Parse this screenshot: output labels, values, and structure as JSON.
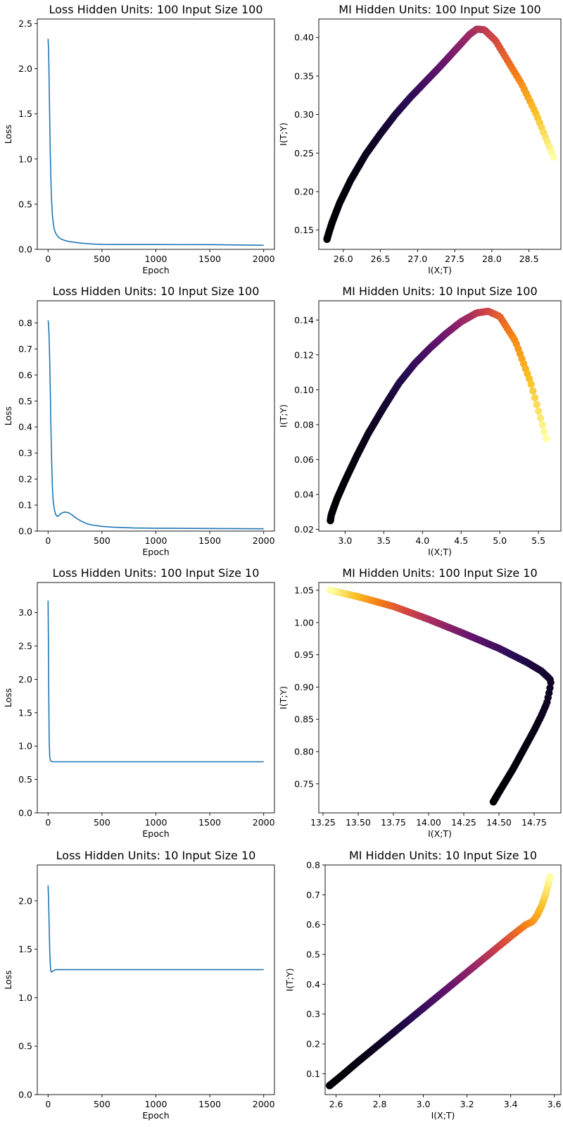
{
  "chart_data": [
    {
      "type": "line",
      "title": "Loss Hidden Units: 100 Input Size 100",
      "xlabel": "Epoch",
      "ylabel": "Loss",
      "xlim": [
        -100,
        2100
      ],
      "ylim": [
        0,
        2.55
      ],
      "xticks": [
        "0",
        "500",
        "1000",
        "1500",
        "2000"
      ],
      "yticks": [
        "0.0",
        "0.5",
        "1.0",
        "1.5",
        "2.0",
        "2.5"
      ],
      "series": [
        {
          "color": "#1f77b4",
          "x": [
            0,
            5,
            10,
            15,
            20,
            30,
            40,
            50,
            60,
            70,
            80,
            100,
            120,
            150,
            200,
            300,
            400,
            500,
            700,
            1000,
            1500,
            2000
          ],
          "y": [
            2.33,
            2.2,
            1.85,
            1.45,
            1.08,
            0.6,
            0.38,
            0.27,
            0.21,
            0.18,
            0.16,
            0.13,
            0.115,
            0.1,
            0.085,
            0.07,
            0.06,
            0.055,
            0.053,
            0.053,
            0.052,
            0.045
          ]
        }
      ]
    },
    {
      "type": "scatter",
      "title": "MI Hidden Units: 100 Input Size 100",
      "xlabel": "I(X;T)",
      "ylabel": "I(T;Y)",
      "xlim": [
        25.67,
        28.93
      ],
      "ylim": [
        0.125,
        0.424
      ],
      "xticks": [
        "26.0",
        "26.5",
        "27.0",
        "27.5",
        "28.0",
        "28.5"
      ],
      "yticks": [
        "0.15",
        "0.20",
        "0.25",
        "0.30",
        "0.35",
        "0.40"
      ],
      "colormap": "inferno",
      "curve_x": [
        25.78,
        25.8,
        25.85,
        25.95,
        26.1,
        26.3,
        26.5,
        26.7,
        26.9,
        27.1,
        27.3,
        27.5,
        27.7,
        27.8,
        27.9,
        28.05,
        28.2,
        28.4,
        28.6,
        28.83
      ],
      "curve_y": [
        0.138,
        0.145,
        0.16,
        0.185,
        0.215,
        0.248,
        0.275,
        0.3,
        0.322,
        0.342,
        0.362,
        0.383,
        0.404,
        0.411,
        0.41,
        0.396,
        0.372,
        0.34,
        0.3,
        0.245
      ]
    },
    {
      "type": "line",
      "title": "Loss Hidden Units: 10 Input Size 100",
      "xlabel": "Epoch",
      "ylabel": "Loss",
      "xlim": [
        -100,
        2100
      ],
      "ylim": [
        0,
        0.885
      ],
      "xticks": [
        "0",
        "500",
        "1000",
        "1500",
        "2000"
      ],
      "yticks": [
        "0.0",
        "0.1",
        "0.2",
        "0.3",
        "0.4",
        "0.5",
        "0.6",
        "0.7",
        "0.8"
      ],
      "series": [
        {
          "color": "#1f77b4",
          "x": [
            0,
            5,
            10,
            15,
            20,
            25,
            30,
            35,
            40,
            45,
            50,
            60,
            70,
            80,
            90,
            100,
            120,
            150,
            180,
            200,
            230,
            260,
            300,
            350,
            400,
            500,
            600,
            800,
            1000,
            1500,
            2000
          ],
          "y": [
            0.81,
            0.79,
            0.74,
            0.66,
            0.55,
            0.43,
            0.33,
            0.24,
            0.17,
            0.13,
            0.105,
            0.08,
            0.065,
            0.058,
            0.057,
            0.06,
            0.068,
            0.073,
            0.072,
            0.068,
            0.06,
            0.05,
            0.04,
            0.03,
            0.024,
            0.018,
            0.015,
            0.012,
            0.011,
            0.01,
            0.009
          ]
        }
      ]
    },
    {
      "type": "scatter",
      "title": "MI Hidden Units: 10 Input Size 100",
      "xlabel": "I(X;T)",
      "ylabel": "I(T;Y)",
      "xlim": [
        2.66,
        5.79
      ],
      "ylim": [
        0.019,
        0.151
      ],
      "xticks": [
        "3.0",
        "3.5",
        "4.0",
        "4.5",
        "5.0",
        "5.5"
      ],
      "yticks": [
        "0.02",
        "0.04",
        "0.06",
        "0.08",
        "0.10",
        "0.12",
        "0.14"
      ],
      "colormap": "inferno",
      "curve_x": [
        2.81,
        2.82,
        2.85,
        2.9,
        3.0,
        3.15,
        3.3,
        3.5,
        3.7,
        3.9,
        4.1,
        4.3,
        4.5,
        4.7,
        4.85,
        5.0,
        5.2,
        5.4,
        5.6
      ],
      "curve_y": [
        0.025,
        0.028,
        0.032,
        0.038,
        0.048,
        0.062,
        0.075,
        0.09,
        0.104,
        0.115,
        0.124,
        0.132,
        0.139,
        0.144,
        0.145,
        0.142,
        0.128,
        0.104,
        0.072
      ]
    },
    {
      "type": "line",
      "title": "Loss Hidden Units: 100 Input Size 10",
      "xlabel": "Epoch",
      "ylabel": "Loss",
      "xlim": [
        -100,
        2100
      ],
      "ylim": [
        0,
        3.45
      ],
      "xticks": [
        "0",
        "500",
        "1000",
        "1500",
        "2000"
      ],
      "yticks": [
        "0.0",
        "0.5",
        "1.0",
        "1.5",
        "2.0",
        "2.5",
        "3.0"
      ],
      "series": [
        {
          "color": "#1f77b4",
          "x": [
            0,
            3,
            6,
            10,
            15,
            20,
            30,
            50,
            100,
            500,
            1000,
            1500,
            2000
          ],
          "y": [
            3.18,
            2.6,
            1.8,
            1.1,
            0.85,
            0.79,
            0.77,
            0.765,
            0.765,
            0.765,
            0.765,
            0.765,
            0.765
          ]
        }
      ]
    },
    {
      "type": "scatter",
      "title": "MI Hidden Units: 100 Input Size 10",
      "xlabel": "I(X;T)",
      "ylabel": "I(T;Y)",
      "xlim": [
        13.22,
        14.94
      ],
      "ylim": [
        0.705,
        1.062
      ],
      "xticks": [
        "13.25",
        "13.50",
        "13.75",
        "14.00",
        "14.25",
        "14.50",
        "14.75"
      ],
      "yticks": [
        "0.75",
        "0.80",
        "0.85",
        "0.90",
        "0.95",
        "1.00",
        "1.05"
      ],
      "colormap": "inferno",
      "curve_x": [
        14.46,
        14.5,
        14.55,
        14.6,
        14.65,
        14.7,
        14.75,
        14.8,
        14.84,
        14.86,
        14.87,
        14.85,
        14.8,
        14.7,
        14.5,
        14.25,
        14.0,
        13.75,
        13.5,
        13.3
      ],
      "curve_y": [
        0.722,
        0.737,
        0.755,
        0.773,
        0.793,
        0.813,
        0.833,
        0.855,
        0.875,
        0.895,
        0.91,
        0.915,
        0.925,
        0.938,
        0.96,
        0.983,
        1.005,
        1.025,
        1.04,
        1.05
      ]
    },
    {
      "type": "line",
      "title": "Loss Hidden Units: 10 Input Size 10",
      "xlabel": "Epoch",
      "ylabel": "Loss",
      "xlim": [
        -100,
        2100
      ],
      "ylim": [
        0,
        2.37
      ],
      "xticks": [
        "0",
        "500",
        "1000",
        "1500",
        "2000"
      ],
      "yticks": [
        "0.0",
        "0.5",
        "1.0",
        "1.5",
        "2.0"
      ],
      "series": [
        {
          "color": "#1f77b4",
          "x": [
            0,
            5,
            10,
            15,
            20,
            25,
            30,
            40,
            50,
            60,
            80,
            100,
            200,
            500,
            1000,
            1500,
            2000
          ],
          "y": [
            2.16,
            2.0,
            1.75,
            1.5,
            1.35,
            1.28,
            1.265,
            1.27,
            1.28,
            1.285,
            1.29,
            1.29,
            1.29,
            1.29,
            1.29,
            1.29,
            1.29
          ]
        }
      ]
    },
    {
      "type": "scatter",
      "title": "MI Hidden Units: 10 Input Size 10",
      "xlabel": "I(X;T)",
      "ylabel": "I(T;Y)",
      "xlim": [
        2.55,
        3.63
      ],
      "ylim": [
        0.03,
        0.8
      ],
      "xticks": [
        "2.6",
        "2.8",
        "3.0",
        "3.2",
        "3.4",
        "3.6"
      ],
      "yticks": [
        "0.1",
        "0.2",
        "0.3",
        "0.4",
        "0.5",
        "0.6",
        "0.7",
        "0.8"
      ],
      "colormap": "inferno",
      "curve_x": [
        2.57,
        2.62,
        2.7,
        2.8,
        2.9,
        3.0,
        3.1,
        3.2,
        3.3,
        3.4,
        3.47,
        3.5,
        3.52,
        3.54,
        3.56,
        3.58
      ],
      "curve_y": [
        0.06,
        0.09,
        0.14,
        0.2,
        0.26,
        0.32,
        0.38,
        0.44,
        0.5,
        0.56,
        0.6,
        0.61,
        0.63,
        0.66,
        0.7,
        0.76
      ]
    }
  ]
}
